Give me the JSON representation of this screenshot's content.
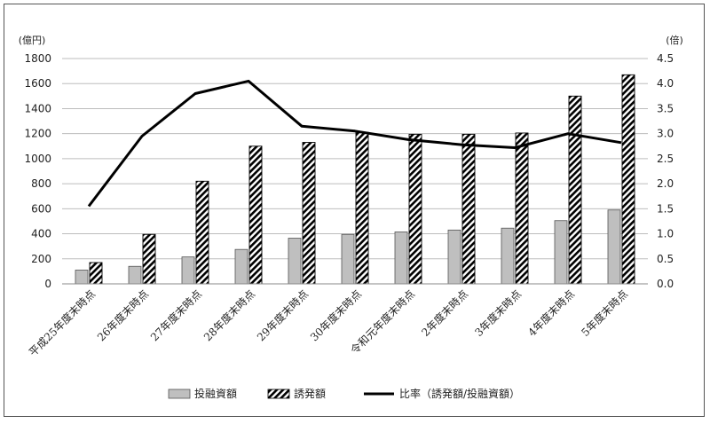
{
  "chart_data": {
    "type": "bar",
    "categories": [
      "平成25年度末時点",
      "26年度末時点",
      "27年度末時点",
      "28年度末時点",
      "29年度末時点",
      "30年度末時点",
      "令和元年度末時点",
      "2年度末時点",
      "3年度末時点",
      "4年度末時点",
      "5年度末時点"
    ],
    "series": [
      {
        "name": "投融資額",
        "kind": "bar",
        "axis": "left",
        "color": "#bfbfbf",
        "values": [
          110,
          140,
          215,
          275,
          365,
          395,
          415,
          430,
          445,
          505,
          590
        ]
      },
      {
        "name": "誘発額",
        "kind": "bar-hatched",
        "axis": "left",
        "color": "#000000",
        "values": [
          170,
          395,
          820,
          1100,
          1130,
          1210,
          1195,
          1195,
          1205,
          1500,
          1670
        ]
      },
      {
        "name": "比率（誘発額/投融資額）",
        "kind": "line",
        "axis": "right",
        "color": "#000000",
        "values": [
          1.55,
          2.95,
          3.8,
          4.05,
          3.15,
          3.05,
          2.88,
          2.78,
          2.72,
          3.0,
          2.82
        ]
      }
    ],
    "y_left": {
      "unit": "(億円)",
      "min": 0,
      "max": 1800,
      "step": 200,
      "ticks": [
        "0",
        "200",
        "400",
        "600",
        "800",
        "1000",
        "1200",
        "1400",
        "1600",
        "1800"
      ]
    },
    "y_right": {
      "unit": "(倍)",
      "min": 0,
      "max": 4.5,
      "step": 0.5,
      "ticks": [
        "0.0",
        "0.5",
        "1.0",
        "1.5",
        "2.0",
        "2.5",
        "3.0",
        "3.5",
        "4.0",
        "4.5"
      ]
    },
    "grid": true,
    "legend_position": "bottom"
  }
}
